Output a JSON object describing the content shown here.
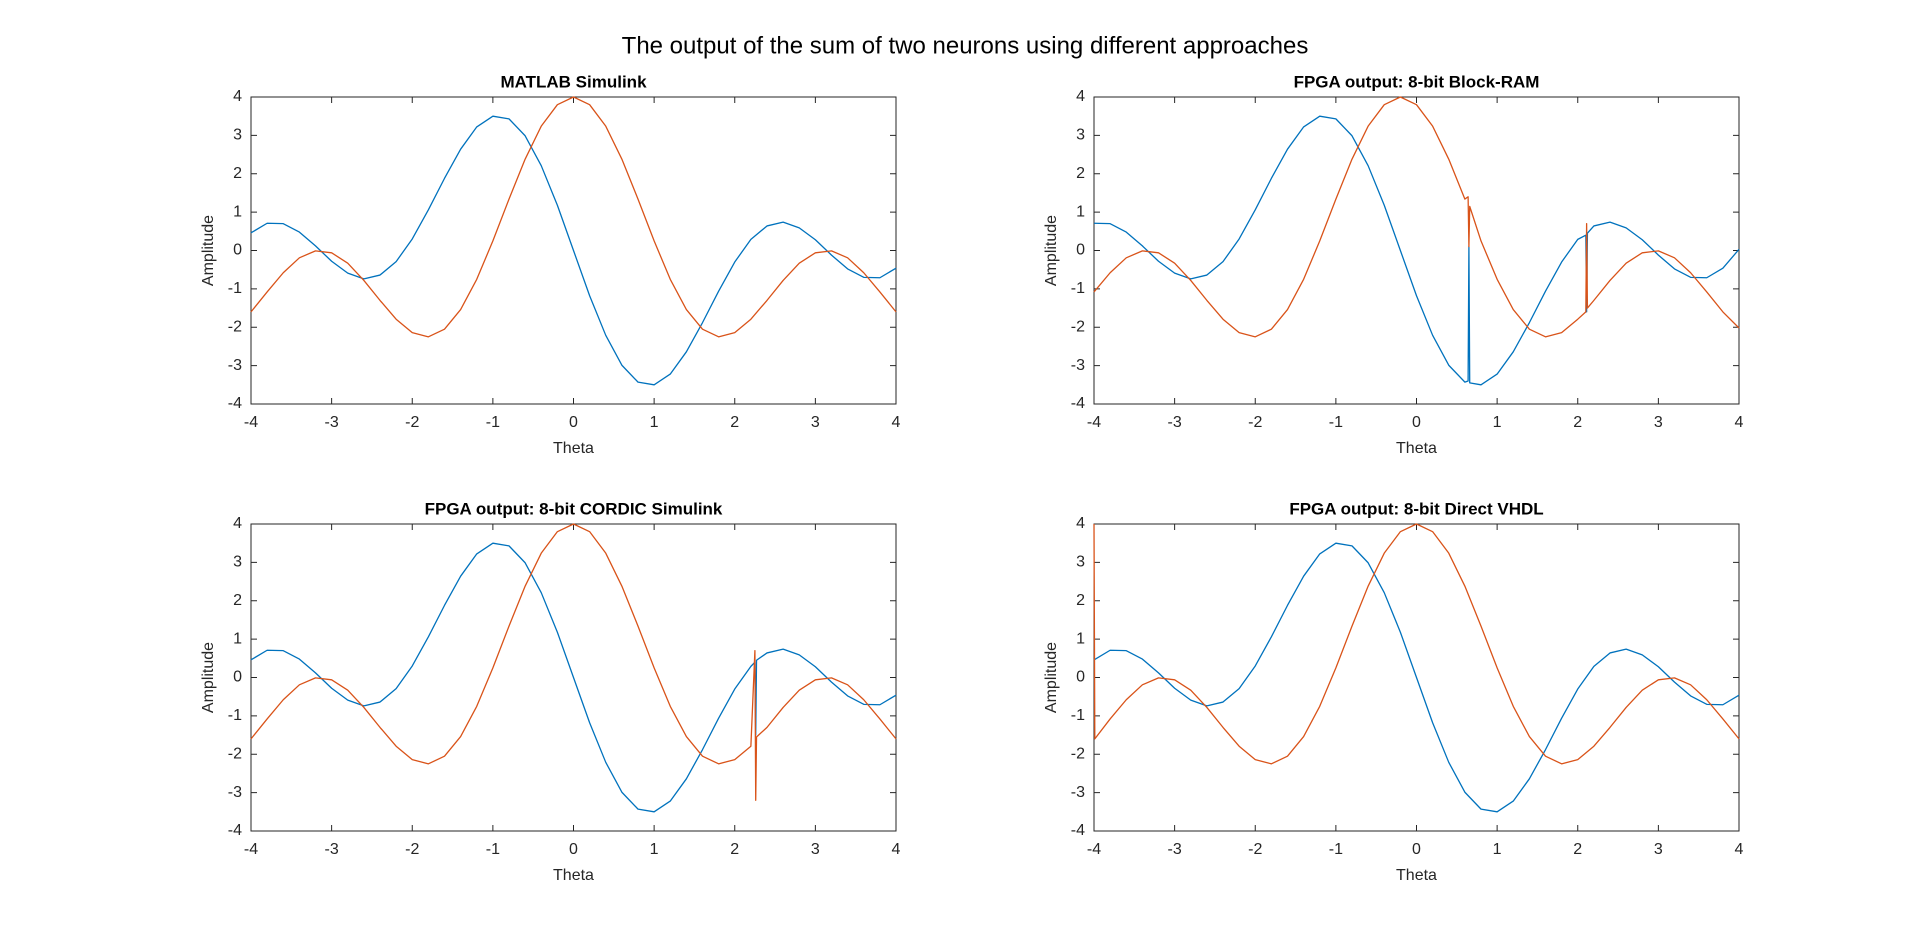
{
  "title": "The output of the sum of two neurons using different approaches",
  "chart_data": [
    {
      "type": "line",
      "title": "MATLAB Simulink",
      "x_label": "Theta",
      "y_label": "Amplitude",
      "xlim": [
        -4,
        4
      ],
      "ylim": [
        -4,
        4
      ],
      "xticks": [
        -4,
        -3,
        -2,
        -1,
        0,
        1,
        2,
        3,
        4
      ],
      "yticks": [
        -4,
        -3,
        -2,
        -1,
        0,
        1,
        2,
        3,
        4
      ],
      "x": [
        -4,
        -3.8,
        -3.6,
        -3.4,
        -3.2,
        -3,
        -2.8,
        -2.6,
        -2.4,
        -2.2,
        -2,
        -1.8,
        -1.6,
        -1.4,
        -1.2,
        -1,
        -0.8,
        -0.6,
        -0.4,
        -0.2,
        0,
        0.2,
        0.4,
        0.6,
        0.8,
        1,
        1.2,
        1.4,
        1.6,
        1.8,
        2,
        2.2,
        2.4,
        2.6,
        2.8,
        3,
        3.2,
        3.4,
        3.6,
        3.8,
        4
      ],
      "series": [
        {
          "color": "#0072BD",
          "values": [
            0.46,
            0.71,
            0.7,
            0.48,
            0.12,
            -0.28,
            -0.59,
            -0.74,
            -0.64,
            -0.29,
            0.3,
            1.06,
            1.88,
            2.64,
            3.22,
            3.5,
            3.43,
            2.99,
            2.21,
            1.18,
            0,
            -1.18,
            -2.21,
            -2.99,
            -3.43,
            -3.5,
            -3.22,
            -2.64,
            -1.88,
            -1.06,
            -0.3,
            0.29,
            0.64,
            0.74,
            0.59,
            0.28,
            -0.12,
            -0.48,
            -0.7,
            -0.71,
            -0.46
          ]
        },
        {
          "color": "#D95319",
          "values": [
            -1.6,
            -1.08,
            -0.58,
            -0.19,
            -0.01,
            -0.06,
            -0.33,
            -0.78,
            -1.3,
            -1.79,
            -2.14,
            -2.25,
            -2.05,
            -1.54,
            -0.75,
            0.25,
            1.34,
            2.38,
            3.24,
            3.8,
            4,
            3.8,
            3.24,
            2.38,
            1.34,
            0.25,
            -0.75,
            -1.54,
            -2.05,
            -2.25,
            -2.14,
            -1.79,
            -1.3,
            -0.78,
            -0.33,
            -0.06,
            -0.01,
            -0.19,
            -0.58,
            -1.08,
            -1.6
          ]
        }
      ]
    },
    {
      "type": "line",
      "title": "FPGA output: 8-bit Block-RAM",
      "x_label": "Theta",
      "y_label": "Amplitude",
      "xlim": [
        -4,
        4
      ],
      "ylim": [
        -4,
        4
      ],
      "xticks": [
        -4,
        -3,
        -2,
        -1,
        0,
        1,
        2,
        3,
        4
      ],
      "yticks": [
        -4,
        -3,
        -2,
        -1,
        0,
        1,
        2,
        3,
        4
      ],
      "x": [
        -4,
        -3.8,
        -3.6,
        -3.4,
        -3.2,
        -3,
        -2.8,
        -2.6,
        -2.4,
        -2.2,
        -2,
        -1.8,
        -1.6,
        -1.4,
        -1.2,
        -1,
        -0.8,
        -0.6,
        -0.4,
        -0.2,
        0,
        0.2,
        0.4,
        0.6,
        0.64,
        0.65,
        0.66,
        0.8,
        1,
        1.2,
        1.4,
        1.6,
        1.8,
        2,
        2.1,
        2.11,
        2.12,
        2.2,
        2.4,
        2.6,
        2.8,
        3,
        3.2,
        3.4,
        3.6,
        3.8,
        4
      ],
      "series": [
        {
          "color": "#0072BD",
          "values": [
            0.71,
            0.7,
            0.48,
            0.12,
            -0.28,
            -0.59,
            -0.74,
            -0.64,
            -0.29,
            0.3,
            1.06,
            1.88,
            2.64,
            3.22,
            3.5,
            3.43,
            2.99,
            2.21,
            1.18,
            0,
            -1.18,
            -2.21,
            -2.99,
            -3.43,
            -3.4,
            0.1,
            -3.45,
            -3.5,
            -3.22,
            -2.64,
            -1.88,
            -1.06,
            -0.3,
            0.29,
            0.4,
            -1.6,
            0.45,
            0.64,
            0.74,
            0.59,
            0.28,
            -0.12,
            -0.48,
            -0.7,
            -0.71,
            -0.46,
            0.03
          ]
        },
        {
          "color": "#D95319",
          "values": [
            -1.08,
            -0.58,
            -0.19,
            -0.01,
            -0.06,
            -0.33,
            -0.78,
            -1.3,
            -1.79,
            -2.14,
            -2.25,
            -2.05,
            -1.54,
            -0.75,
            0.25,
            1.34,
            2.38,
            3.24,
            3.8,
            4,
            3.8,
            3.24,
            2.38,
            1.34,
            1.4,
            0.1,
            1.15,
            0.25,
            -0.75,
            -1.54,
            -2.05,
            -2.25,
            -2.14,
            -1.79,
            -1.6,
            0.7,
            -1.5,
            -1.3,
            -0.78,
            -0.33,
            -0.06,
            -0.01,
            -0.19,
            -0.58,
            -1.08,
            -1.6,
            -2.02
          ]
        }
      ]
    },
    {
      "type": "line",
      "title": "FPGA output: 8-bit CORDIC Simulink",
      "x_label": "Theta",
      "y_label": "Amplitude",
      "xlim": [
        -4,
        4
      ],
      "ylim": [
        -4,
        4
      ],
      "xticks": [
        -4,
        -3,
        -2,
        -1,
        0,
        1,
        2,
        3,
        4
      ],
      "yticks": [
        -4,
        -3,
        -2,
        -1,
        0,
        1,
        2,
        3,
        4
      ],
      "x": [
        -4,
        -3.8,
        -3.6,
        -3.4,
        -3.2,
        -3,
        -2.8,
        -2.6,
        -2.4,
        -2.2,
        -2,
        -1.8,
        -1.6,
        -1.4,
        -1.2,
        -1,
        -0.8,
        -0.6,
        -0.4,
        -0.2,
        0,
        0.2,
        0.4,
        0.6,
        0.8,
        1,
        1.2,
        1.4,
        1.6,
        1.8,
        2,
        2.2,
        2.25,
        2.26,
        2.27,
        2.4,
        2.6,
        2.8,
        3,
        3.2,
        3.4,
        3.6,
        3.8,
        4
      ],
      "series": [
        {
          "color": "#0072BD",
          "values": [
            0.46,
            0.71,
            0.7,
            0.48,
            0.12,
            -0.28,
            -0.59,
            -0.74,
            -0.64,
            -0.29,
            0.3,
            1.06,
            1.88,
            2.64,
            3.22,
            3.5,
            3.43,
            2.99,
            2.21,
            1.18,
            0,
            -1.18,
            -2.21,
            -2.99,
            -3.43,
            -3.5,
            -3.22,
            -2.64,
            -1.88,
            -1.06,
            -0.3,
            0.29,
            0.4,
            -1.5,
            0.45,
            0.64,
            0.74,
            0.59,
            0.28,
            -0.12,
            -0.48,
            -0.7,
            -0.71,
            -0.46
          ]
        },
        {
          "color": "#D95319",
          "values": [
            -1.6,
            -1.08,
            -0.58,
            -0.19,
            -0.01,
            -0.06,
            -0.33,
            -0.78,
            -1.3,
            -1.79,
            -2.14,
            -2.25,
            -2.05,
            -1.54,
            -0.75,
            0.25,
            1.34,
            2.38,
            3.24,
            3.8,
            4,
            3.8,
            3.24,
            2.38,
            1.34,
            0.25,
            -0.75,
            -1.54,
            -2.05,
            -2.25,
            -2.14,
            -1.79,
            0.7,
            -3.2,
            -1.55,
            -1.3,
            -0.78,
            -0.33,
            -0.06,
            -0.01,
            -0.19,
            -0.58,
            -1.08,
            -1.6
          ]
        }
      ]
    },
    {
      "type": "line",
      "title": "FPGA output: 8-bit Direct VHDL",
      "x_label": "Theta",
      "y_label": "Amplitude",
      "xlim": [
        -4,
        4
      ],
      "ylim": [
        -4,
        4
      ],
      "xticks": [
        -4,
        -3,
        -2,
        -1,
        0,
        1,
        2,
        3,
        4
      ],
      "yticks": [
        -4,
        -3,
        -2,
        -1,
        0,
        1,
        2,
        3,
        4
      ],
      "x": [
        -4,
        -3.99,
        -3.8,
        -3.6,
        -3.4,
        -3.2,
        -3,
        -2.8,
        -2.6,
        -2.4,
        -2.2,
        -2,
        -1.8,
        -1.6,
        -1.4,
        -1.2,
        -1,
        -0.8,
        -0.6,
        -0.4,
        -0.2,
        0,
        0.2,
        0.4,
        0.6,
        0.8,
        1,
        1.2,
        1.4,
        1.6,
        1.8,
        2,
        2.2,
        2.4,
        2.6,
        2.8,
        3,
        3.2,
        3.4,
        3.6,
        3.8,
        4
      ],
      "series": [
        {
          "color": "#0072BD",
          "values": [
            0.46,
            0.47,
            0.71,
            0.7,
            0.48,
            0.12,
            -0.28,
            -0.59,
            -0.74,
            -0.64,
            -0.29,
            0.3,
            1.06,
            1.88,
            2.64,
            3.22,
            3.5,
            3.43,
            2.99,
            2.21,
            1.18,
            0,
            -1.18,
            -2.21,
            -2.99,
            -3.43,
            -3.5,
            -3.22,
            -2.64,
            -1.88,
            -1.06,
            -0.3,
            0.29,
            0.64,
            0.74,
            0.59,
            0.28,
            -0.12,
            -0.48,
            -0.7,
            -0.71,
            -0.46
          ]
        },
        {
          "color": "#D95319",
          "values": [
            4,
            -1.6,
            -1.08,
            -0.58,
            -0.19,
            -0.01,
            -0.06,
            -0.33,
            -0.78,
            -1.3,
            -1.79,
            -2.14,
            -2.25,
            -2.05,
            -1.54,
            -0.75,
            0.25,
            1.34,
            2.38,
            3.24,
            3.8,
            4,
            3.8,
            3.24,
            2.38,
            1.34,
            0.25,
            -0.75,
            -1.54,
            -2.05,
            -2.25,
            -2.14,
            -1.79,
            -1.3,
            -0.78,
            -0.33,
            -0.06,
            -0.01,
            -0.19,
            -0.58,
            -1.08,
            -1.6
          ]
        }
      ]
    }
  ]
}
